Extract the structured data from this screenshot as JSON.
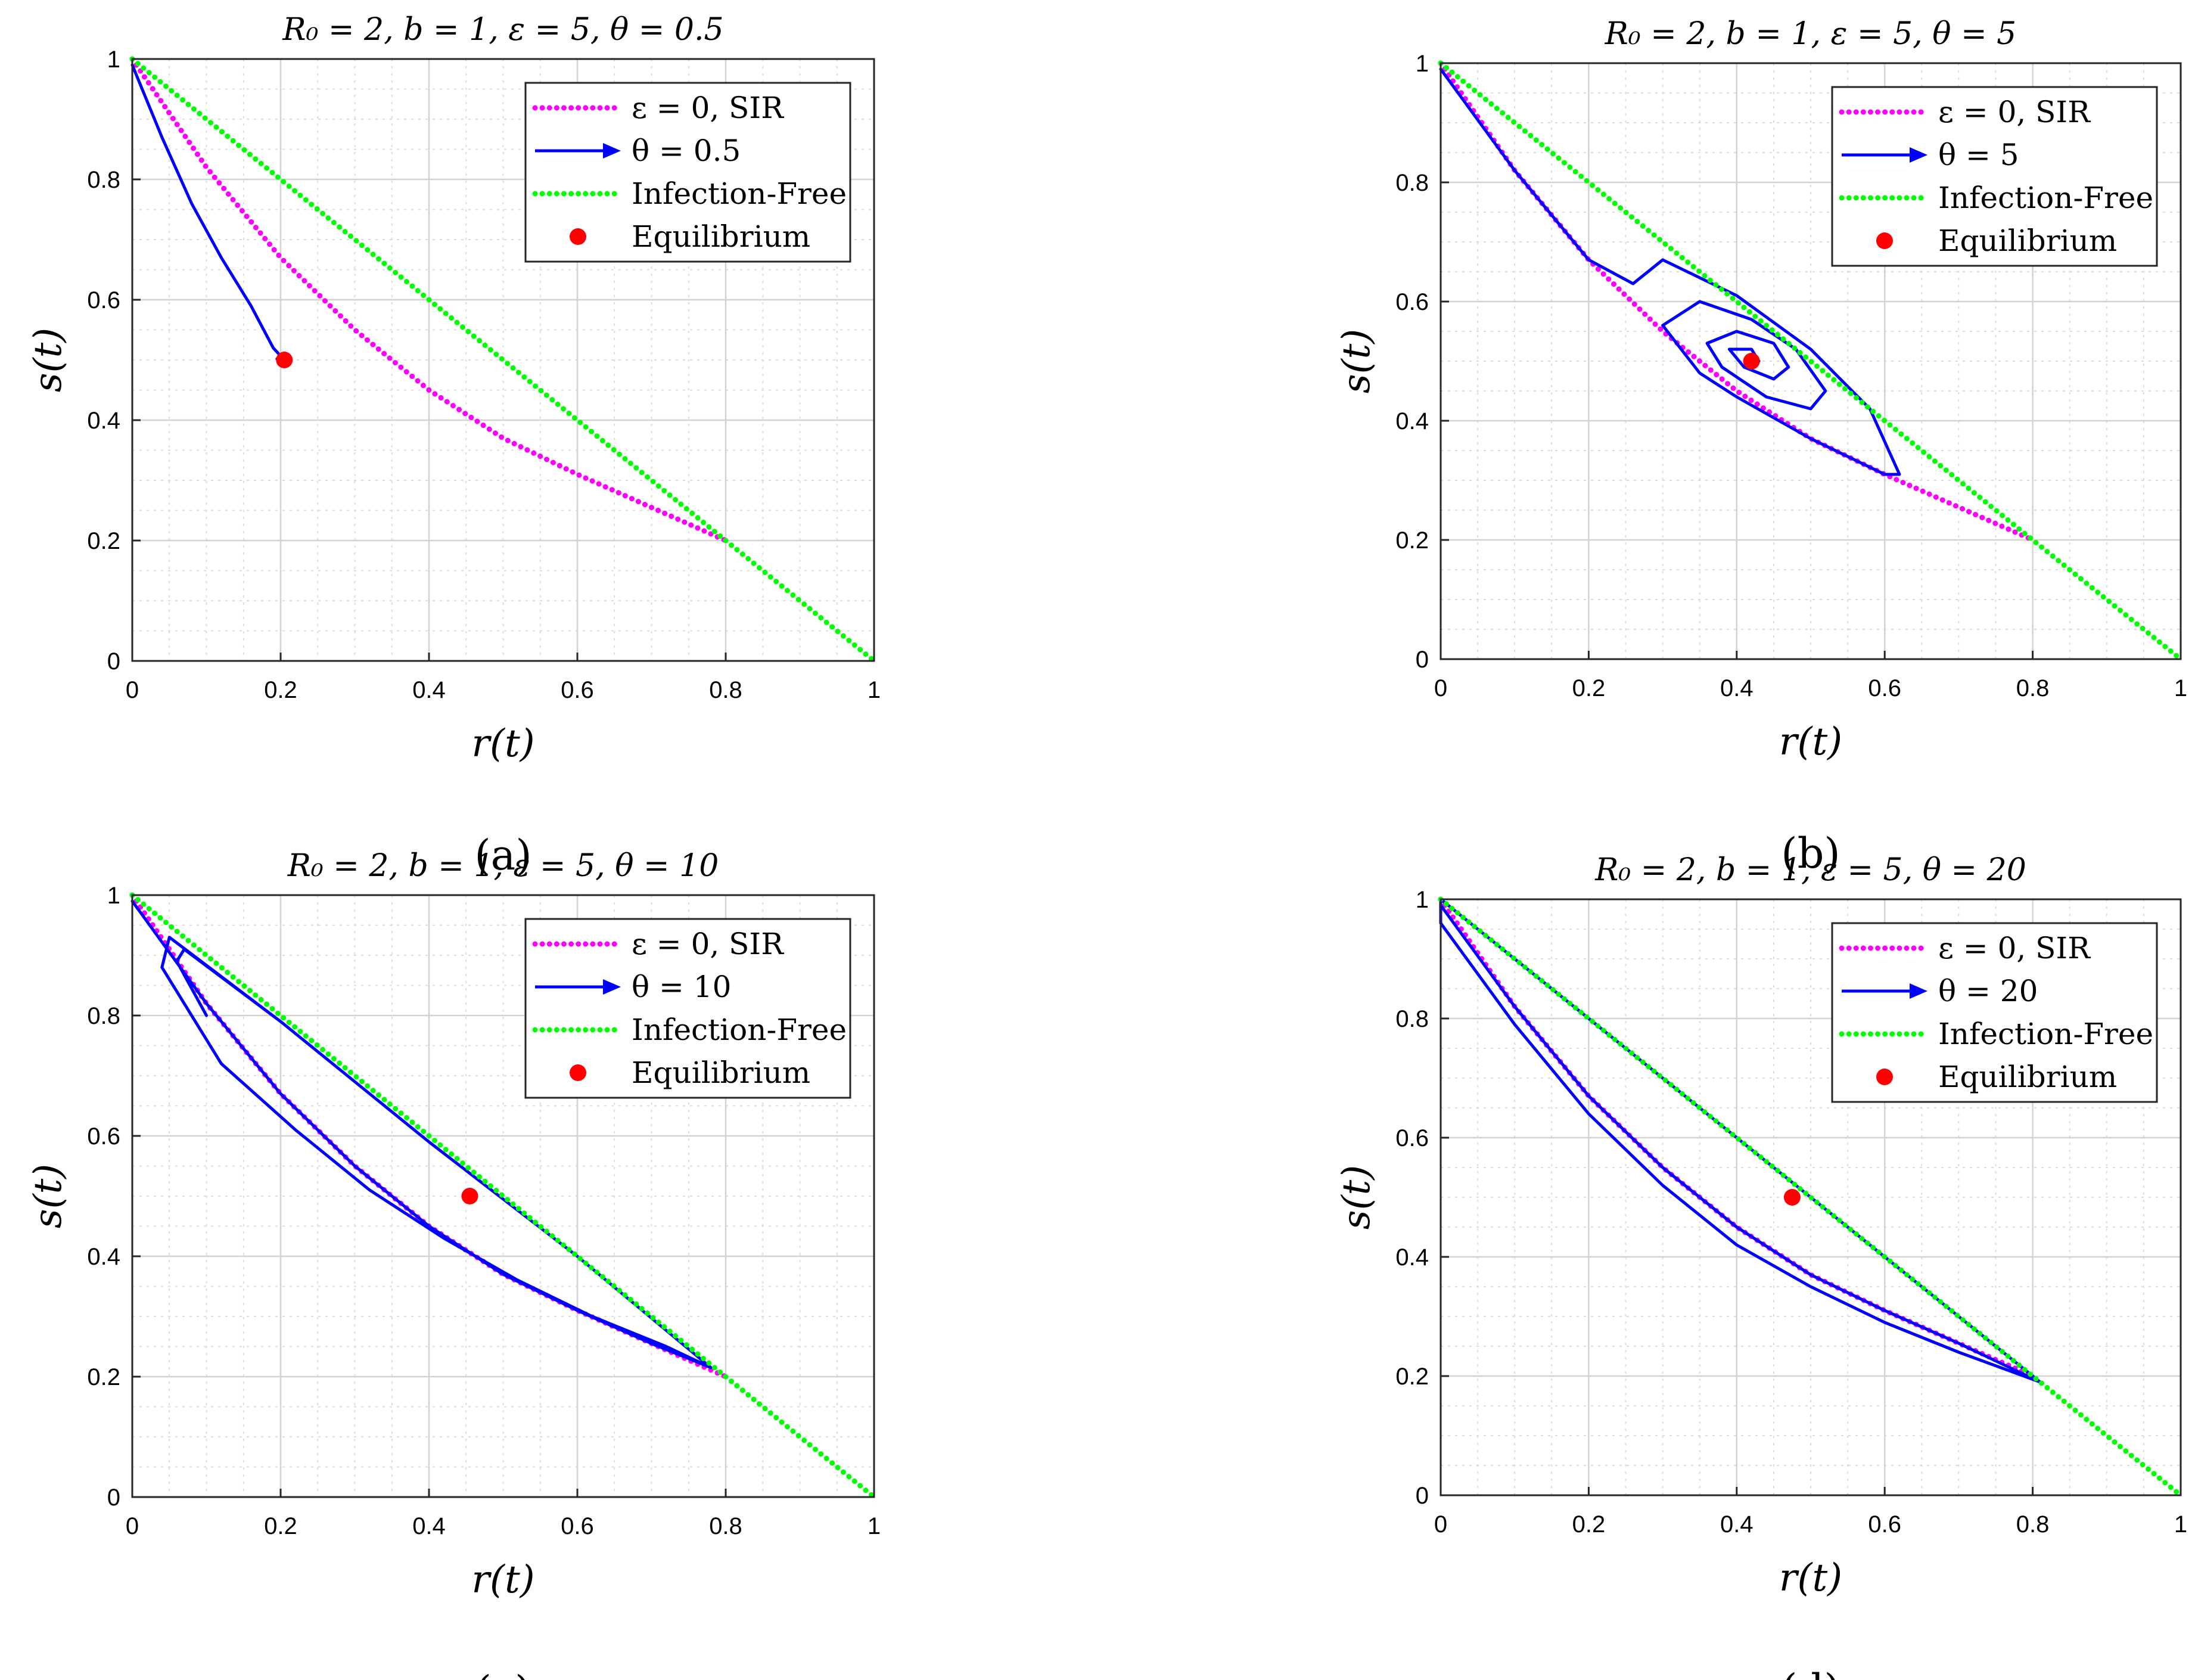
{
  "chart_data": [
    {
      "type": "line",
      "panel": "a",
      "title": "R₀ = 2, b = 1, ε = 5, θ = 0.5",
      "xlabel": "r(t)",
      "ylabel": "s(t)",
      "xlim": [
        0,
        1
      ],
      "ylim": [
        0,
        1
      ],
      "xticks": [
        "0",
        "0.2",
        "0.4",
        "0.6",
        "0.8",
        "1"
      ],
      "yticks": [
        "0",
        "0.2",
        "0.4",
        "0.6",
        "0.8",
        "1"
      ],
      "grid": true,
      "legend_position": "top-right",
      "legend": [
        "ε = 0, SIR",
        "θ = 0.5",
        "Infection-Free",
        "Equilibrium"
      ],
      "caption": "(a)",
      "series": [
        {
          "name": "ε = 0, SIR",
          "style": "dotted",
          "color": "#ff00ff",
          "x": [
            0,
            0.1,
            0.2,
            0.3,
            0.4,
            0.5,
            0.6,
            0.7,
            0.8
          ],
          "y": [
            1.0,
            0.82,
            0.67,
            0.55,
            0.45,
            0.37,
            0.31,
            0.255,
            0.2
          ]
        },
        {
          "name": "θ = 0.5",
          "style": "solid",
          "color": "#0000ff",
          "x": [
            0,
            0.04,
            0.08,
            0.12,
            0.16,
            0.19,
            0.205,
            0.195
          ],
          "y": [
            0.99,
            0.87,
            0.76,
            0.67,
            0.59,
            0.52,
            0.5,
            0.502
          ]
        },
        {
          "name": "Infection-Free",
          "style": "dotted",
          "color": "#00ff00",
          "x": [
            0,
            1
          ],
          "y": [
            1,
            0
          ]
        }
      ],
      "equilibrium": {
        "name": "Equilibrium",
        "x": 0.205,
        "y": 0.5,
        "color": "#ff0000"
      }
    },
    {
      "type": "line",
      "panel": "b",
      "title": "R₀ = 2, b = 1, ε = 5, θ = 5",
      "xlabel": "r(t)",
      "ylabel": "s(t)",
      "xlim": [
        0,
        1
      ],
      "ylim": [
        0,
        1
      ],
      "xticks": [
        "0",
        "0.2",
        "0.4",
        "0.6",
        "0.8",
        "1"
      ],
      "yticks": [
        "0",
        "0.2",
        "0.4",
        "0.6",
        "0.8",
        "1"
      ],
      "grid": true,
      "legend_position": "top-right",
      "legend": [
        "ε = 0, SIR",
        "θ = 5",
        "Infection-Free",
        "Equilibrium"
      ],
      "caption": "(b)",
      "series": [
        {
          "name": "ε = 0, SIR",
          "style": "dotted",
          "color": "#ff00ff",
          "x": [
            0,
            0.1,
            0.2,
            0.3,
            0.4,
            0.5,
            0.6,
            0.7,
            0.8
          ],
          "y": [
            1.0,
            0.82,
            0.67,
            0.55,
            0.45,
            0.37,
            0.31,
            0.255,
            0.2
          ]
        },
        {
          "name": "θ = 5",
          "style": "solid",
          "color": "#0000ff",
          "x": [
            0,
            0.1,
            0.2,
            0.26,
            0.3,
            0.4,
            0.5,
            0.58,
            0.62,
            0.6,
            0.5,
            0.4,
            0.35,
            0.3,
            0.35,
            0.42,
            0.48,
            0.52,
            0.5,
            0.44,
            0.38,
            0.36,
            0.4,
            0.45,
            0.47,
            0.45,
            0.41,
            0.39,
            0.42,
            0.43,
            0.42
          ],
          "y": [
            0.99,
            0.82,
            0.67,
            0.63,
            0.67,
            0.61,
            0.52,
            0.42,
            0.31,
            0.31,
            0.37,
            0.44,
            0.48,
            0.56,
            0.6,
            0.57,
            0.52,
            0.45,
            0.42,
            0.44,
            0.49,
            0.53,
            0.55,
            0.53,
            0.49,
            0.47,
            0.49,
            0.52,
            0.52,
            0.5,
            0.5
          ]
        },
        {
          "name": "Infection-Free",
          "style": "dotted",
          "color": "#00ff00",
          "x": [
            0,
            1
          ],
          "y": [
            1,
            0
          ]
        }
      ],
      "equilibrium": {
        "name": "Equilibrium",
        "x": 0.42,
        "y": 0.5,
        "color": "#ff0000"
      }
    },
    {
      "type": "line",
      "panel": "c",
      "title": "R₀ = 2, b = 1, ε = 5, θ = 10",
      "xlabel": "r(t)",
      "ylabel": "s(t)",
      "xlim": [
        0,
        1
      ],
      "ylim": [
        0,
        1
      ],
      "xticks": [
        "0",
        "0.2",
        "0.4",
        "0.6",
        "0.8",
        "1"
      ],
      "yticks": [
        "0",
        "0.2",
        "0.4",
        "0.6",
        "0.8",
        "1"
      ],
      "grid": true,
      "legend_position": "top-right",
      "legend": [
        "ε = 0, SIR",
        "θ = 10",
        "Infection-Free",
        "Equilibrium"
      ],
      "caption": "(c)",
      "series": [
        {
          "name": "ε = 0, SIR",
          "style": "dotted",
          "color": "#ff00ff",
          "x": [
            0,
            0.1,
            0.2,
            0.3,
            0.4,
            0.5,
            0.6,
            0.7,
            0.8
          ],
          "y": [
            1.0,
            0.82,
            0.67,
            0.55,
            0.45,
            0.37,
            0.31,
            0.255,
            0.2
          ]
        },
        {
          "name": "θ = 10",
          "style": "solid",
          "color": "#0000ff",
          "x": [
            0,
            0.1,
            0.2,
            0.3,
            0.4,
            0.5,
            0.6,
            0.7,
            0.78,
            0.6,
            0.4,
            0.2,
            0.05,
            0.04,
            0.12,
            0.22,
            0.32,
            0.42,
            0.52,
            0.62,
            0.72,
            0.78,
            0.6,
            0.4,
            0.2,
            0.07,
            0.06,
            0.1
          ],
          "y": [
            0.99,
            0.82,
            0.67,
            0.55,
            0.45,
            0.37,
            0.31,
            0.255,
            0.215,
            0.4,
            0.59,
            0.79,
            0.93,
            0.88,
            0.72,
            0.61,
            0.51,
            0.43,
            0.36,
            0.3,
            0.25,
            0.215,
            0.4,
            0.59,
            0.79,
            0.91,
            0.89,
            0.8
          ]
        },
        {
          "name": "Infection-Free",
          "style": "dotted",
          "color": "#00ff00",
          "x": [
            0,
            1
          ],
          "y": [
            1,
            0
          ]
        }
      ],
      "equilibrium": {
        "name": "Equilibrium",
        "x": 0.455,
        "y": 0.5,
        "color": "#ff0000"
      }
    },
    {
      "type": "line",
      "panel": "d",
      "title": "R₀ = 2, b = 1, ε = 5, θ = 20",
      "xlabel": "r(t)",
      "ylabel": "s(t)",
      "xlim": [
        0,
        1
      ],
      "ylim": [
        0,
        1
      ],
      "xticks": [
        "0",
        "0.2",
        "0.4",
        "0.6",
        "0.8",
        "1"
      ],
      "yticks": [
        "0",
        "0.2",
        "0.4",
        "0.6",
        "0.8",
        "1"
      ],
      "grid": true,
      "legend_position": "top-right",
      "legend": [
        "ε = 0, SIR",
        "θ = 20",
        "Infection-Free",
        "Equilibrium"
      ],
      "caption": "(d)",
      "series": [
        {
          "name": "ε = 0, SIR",
          "style": "dotted",
          "color": "#ff00ff",
          "x": [
            0,
            0.1,
            0.2,
            0.3,
            0.4,
            0.5,
            0.6,
            0.7,
            0.8
          ],
          "y": [
            1.0,
            0.82,
            0.67,
            0.55,
            0.45,
            0.37,
            0.31,
            0.255,
            0.2
          ]
        },
        {
          "name": "θ = 20",
          "style": "solid",
          "color": "#0000ff",
          "x": [
            0,
            0.1,
            0.2,
            0.3,
            0.4,
            0.5,
            0.6,
            0.7,
            0.81,
            0.6,
            0.4,
            0.2,
            0,
            0,
            0.1,
            0.2,
            0.3,
            0.4,
            0.5,
            0.6,
            0.7,
            0.81
          ],
          "y": [
            0.99,
            0.82,
            0.67,
            0.55,
            0.45,
            0.37,
            0.31,
            0.255,
            0.19,
            0.4,
            0.6,
            0.8,
            1.0,
            0.96,
            0.79,
            0.64,
            0.52,
            0.42,
            0.35,
            0.29,
            0.24,
            0.19
          ]
        },
        {
          "name": "Infection-Free",
          "style": "dotted",
          "color": "#00ff00",
          "x": [
            0,
            1
          ],
          "y": [
            1,
            0
          ]
        }
      ],
      "equilibrium": {
        "name": "Equilibrium",
        "x": 0.475,
        "y": 0.5,
        "color": "#ff0000"
      }
    }
  ]
}
